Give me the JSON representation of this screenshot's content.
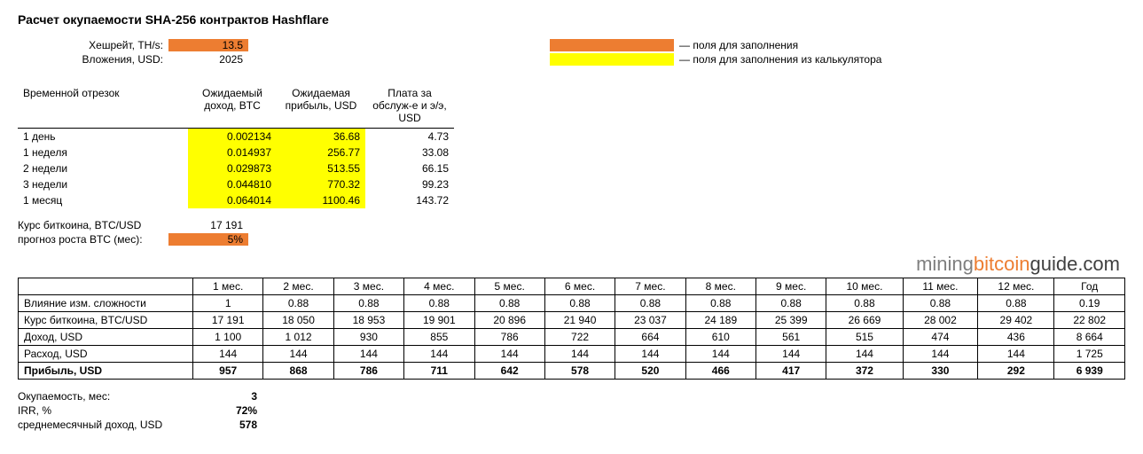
{
  "title": "Расчет окупаемости SHA-256 контрактов Hashflare",
  "params": {
    "hashrate_label": "Хешрейт, TH/s:",
    "hashrate_value": "13.5",
    "investment_label": "Вложения, USD:",
    "investment_value": "2025"
  },
  "legend": {
    "orange_text": "— поля для заполнения",
    "yellow_text": "— поля для заполнения из калькулятора",
    "colors": {
      "orange": "#ed7d31",
      "yellow": "#ffff00"
    }
  },
  "periods": {
    "headers": {
      "period": "Временной отрезок",
      "income": "Ожидаемый доход, BTC",
      "profit": "Ожидаемая прибыль, USD",
      "fee": "Плата за обслуж-е и э/э, USD"
    },
    "rows": [
      {
        "p": "1 день",
        "btc": "0.002134",
        "usd": "36.68",
        "fee": "4.73"
      },
      {
        "p": "1 неделя",
        "btc": "0.014937",
        "usd": "256.77",
        "fee": "33.08"
      },
      {
        "p": "2 недели",
        "btc": "0.029873",
        "usd": "513.55",
        "fee": "66.15"
      },
      {
        "p": "3 недели",
        "btc": "0.044810",
        "usd": "770.32",
        "fee": "99.23"
      },
      {
        "p": "1 месяц",
        "btc": "0.064014",
        "usd": "1100.46",
        "fee": "143.72"
      }
    ]
  },
  "extra": {
    "rate_label": "Курс биткоина, BTC/USD",
    "rate_value": "17 191",
    "growth_label": "прогноз роста BTC (мес):",
    "growth_value": "5%"
  },
  "watermark": {
    "p1": "mining",
    "p2": "bitcoin",
    "p3": "guide.com"
  },
  "monthly": {
    "header_first": "",
    "months": [
      "1 мес.",
      "2 мес.",
      "3 мес.",
      "4 мес.",
      "5 мес.",
      "6 мес.",
      "7 мес.",
      "8 мес.",
      "9 мес.",
      "10 мес.",
      "11 мес.",
      "12 мес.",
      "Год"
    ],
    "rows": [
      {
        "label": "Влияние изм. сложности",
        "vals": [
          "1",
          "0.88",
          "0.88",
          "0.88",
          "0.88",
          "0.88",
          "0.88",
          "0.88",
          "0.88",
          "0.88",
          "0.88",
          "0.88",
          "0.19"
        ]
      },
      {
        "label": "Курс биткоина, BTC/USD",
        "vals": [
          "17 191",
          "18 050",
          "18 953",
          "19 901",
          "20 896",
          "21 940",
          "23 037",
          "24 189",
          "25 399",
          "26 669",
          "28 002",
          "29 402",
          "22 802"
        ]
      },
      {
        "label": "Доход, USD",
        "vals": [
          "1 100",
          "1 012",
          "930",
          "855",
          "786",
          "722",
          "664",
          "610",
          "561",
          "515",
          "474",
          "436",
          "8 664"
        ]
      },
      {
        "label": "Расход, USD",
        "vals": [
          "144",
          "144",
          "144",
          "144",
          "144",
          "144",
          "144",
          "144",
          "144",
          "144",
          "144",
          "144",
          "1 725"
        ]
      },
      {
        "label": "Прибыль, USD",
        "vals": [
          "957",
          "868",
          "786",
          "711",
          "642",
          "578",
          "520",
          "466",
          "417",
          "372",
          "330",
          "292",
          "6 939"
        ],
        "bold": true
      }
    ]
  },
  "summary": {
    "payback_label": "Окупаемость, мес:",
    "payback_value": "3",
    "irr_label": "IRR, %",
    "irr_value": "72%",
    "avg_label": "среднемесячный доход, USD",
    "avg_value": "578"
  }
}
